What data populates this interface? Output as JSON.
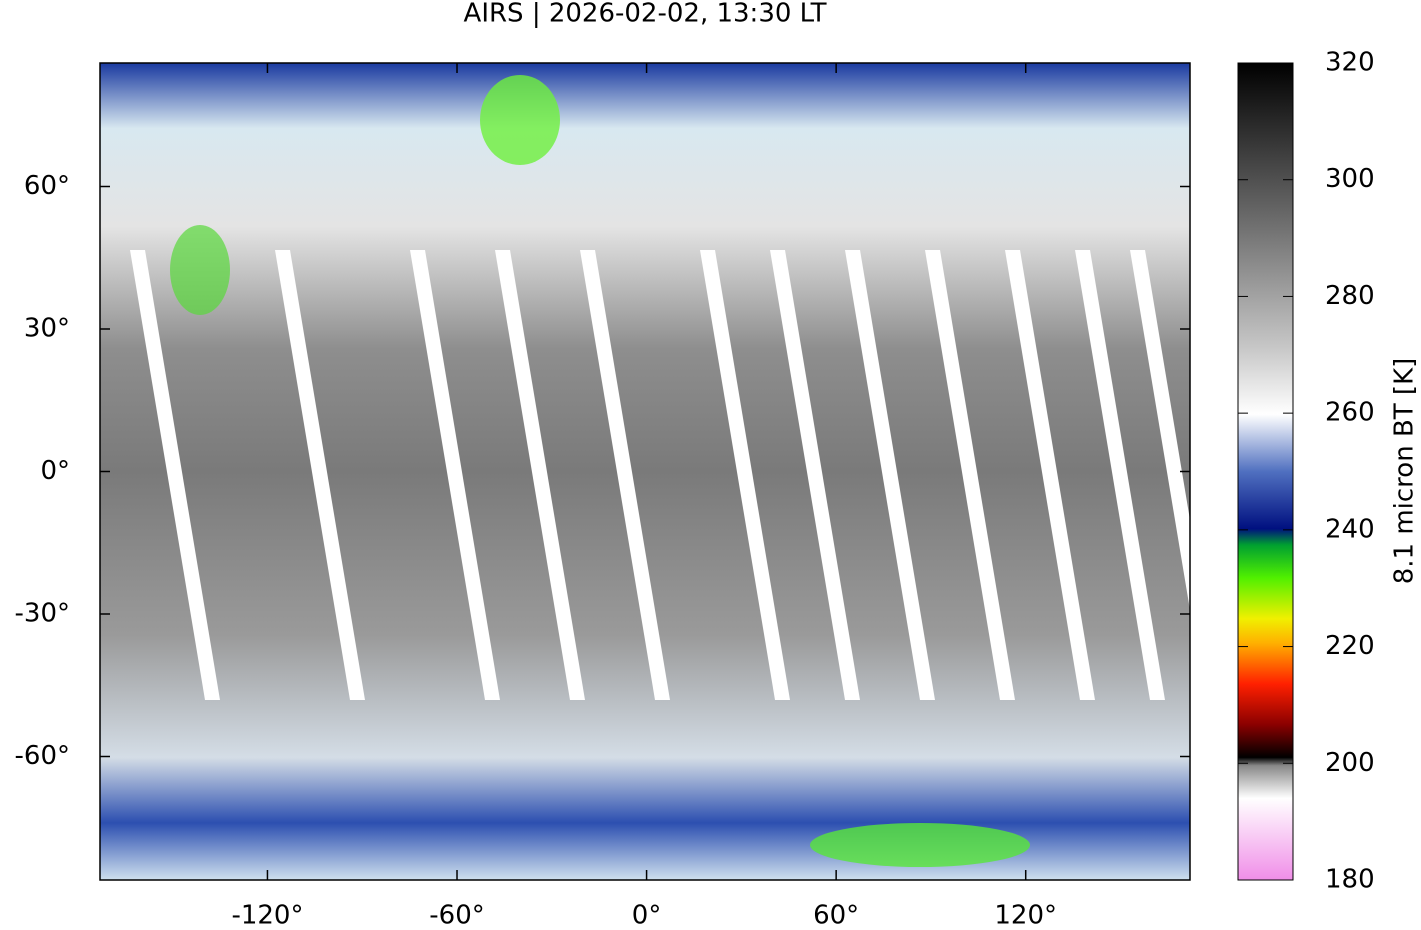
{
  "chart_data": {
    "type": "map",
    "title": "AIRS | 2026-02-02, 13:30 LT",
    "xlim": [
      -173,
      172
    ],
    "ylim": [
      -86,
      86
    ],
    "xticks": [
      {
        "value": -120,
        "label": "-120°"
      },
      {
        "value": -60,
        "label": "-60°"
      },
      {
        "value": 0,
        "label": "0°"
      },
      {
        "value": 60,
        "label": "60°"
      },
      {
        "value": 120,
        "label": "120°"
      }
    ],
    "yticks": [
      {
        "value": 60,
        "label": "60°"
      },
      {
        "value": 30,
        "label": "30°"
      },
      {
        "value": 0,
        "label": "0°"
      },
      {
        "value": -30,
        "label": "-30°"
      },
      {
        "value": -60,
        "label": "-60°"
      }
    ],
    "colorbar": {
      "label": "8.1 micron BT [K]",
      "clim": [
        180,
        320
      ],
      "ticks": [
        180,
        200,
        220,
        240,
        260,
        280,
        300,
        320
      ]
    }
  }
}
